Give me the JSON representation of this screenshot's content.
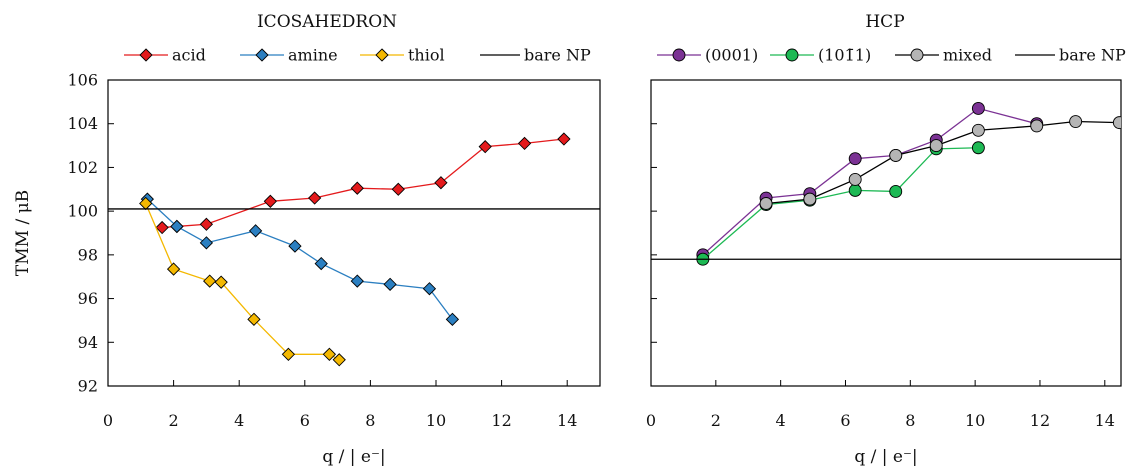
{
  "chart_data": [
    {
      "type": "line",
      "title": "ICOSAHEDRON",
      "xlabel": "q / | e⁻|",
      "ylabel": "TMM / μB",
      "xlim": [
        0,
        15
      ],
      "ylim": [
        92,
        106
      ],
      "xticks": [
        0,
        2,
        4,
        6,
        8,
        10,
        12,
        14
      ],
      "yticks": [
        92,
        94,
        96,
        98,
        100,
        102,
        104,
        106
      ],
      "grid": false,
      "legend_position": "top",
      "series": [
        {
          "name": "acid",
          "marker": "diamond",
          "color": "#e41a1c",
          "x": [
            1.65,
            2.1,
            3.0,
            4.95,
            6.3,
            7.6,
            8.85,
            10.15,
            11.5,
            12.7,
            13.9
          ],
          "y": [
            99.25,
            99.3,
            99.4,
            100.45,
            100.6,
            101.05,
            101.0,
            101.3,
            102.95,
            103.1,
            103.3
          ]
        },
        {
          "name": "amine",
          "marker": "diamond",
          "color": "#2b7fc1",
          "x": [
            1.2,
            2.1,
            3.0,
            4.5,
            5.7,
            6.5,
            7.6,
            8.6,
            9.8,
            10.5
          ],
          "y": [
            100.55,
            99.3,
            98.55,
            99.1,
            98.4,
            97.6,
            96.8,
            96.65,
            96.45,
            95.05
          ]
        },
        {
          "name": "thiol",
          "marker": "diamond",
          "color": "#f4b800",
          "x": [
            1.15,
            2.0,
            3.1,
            3.45,
            4.45,
            5.5,
            6.75,
            7.05
          ],
          "y": [
            100.35,
            97.35,
            96.8,
            96.75,
            95.05,
            93.45,
            93.45,
            93.2
          ]
        },
        {
          "name": "bare NP",
          "type": "hline",
          "color": "#000000",
          "y": 100.1
        }
      ]
    },
    {
      "type": "line",
      "title": "HCP",
      "xlabel": "q / | e⁻|",
      "xlim": [
        0,
        14.5
      ],
      "ylim": [
        92,
        106
      ],
      "xticks": [
        0,
        2,
        4,
        6,
        8,
        10,
        12,
        14
      ],
      "yticks": [
        92,
        94,
        96,
        98,
        100,
        102,
        104,
        106
      ],
      "grid": false,
      "legend_position": "top",
      "series": [
        {
          "name": "(0001)",
          "marker": "circle",
          "color": "#7b3294",
          "x": [
            1.6,
            3.55,
            4.9,
            6.3,
            7.55,
            8.8,
            10.1,
            11.9
          ],
          "y": [
            98.0,
            100.6,
            100.8,
            102.4,
            102.55,
            103.25,
            104.7,
            104.0
          ]
        },
        {
          "name": "(101̄1)",
          "marker": "circle",
          "color": "#1db954",
          "x": [
            1.6,
            3.55,
            4.9,
            6.3,
            7.55,
            8.8,
            10.1
          ],
          "y": [
            97.8,
            100.3,
            100.5,
            100.95,
            100.9,
            102.85,
            102.9
          ]
        },
        {
          "name": "mixed",
          "marker": "circle",
          "color": "#b5b5b5",
          "x": [
            3.55,
            4.9,
            6.3,
            7.55,
            8.8,
            10.1,
            11.9,
            13.1,
            14.45
          ],
          "y": [
            100.35,
            100.55,
            101.45,
            102.55,
            103.0,
            103.7,
            103.9,
            104.1,
            104.05
          ]
        },
        {
          "name": "bare NP",
          "type": "hline",
          "color": "#000000",
          "y": 97.8
        }
      ]
    }
  ]
}
